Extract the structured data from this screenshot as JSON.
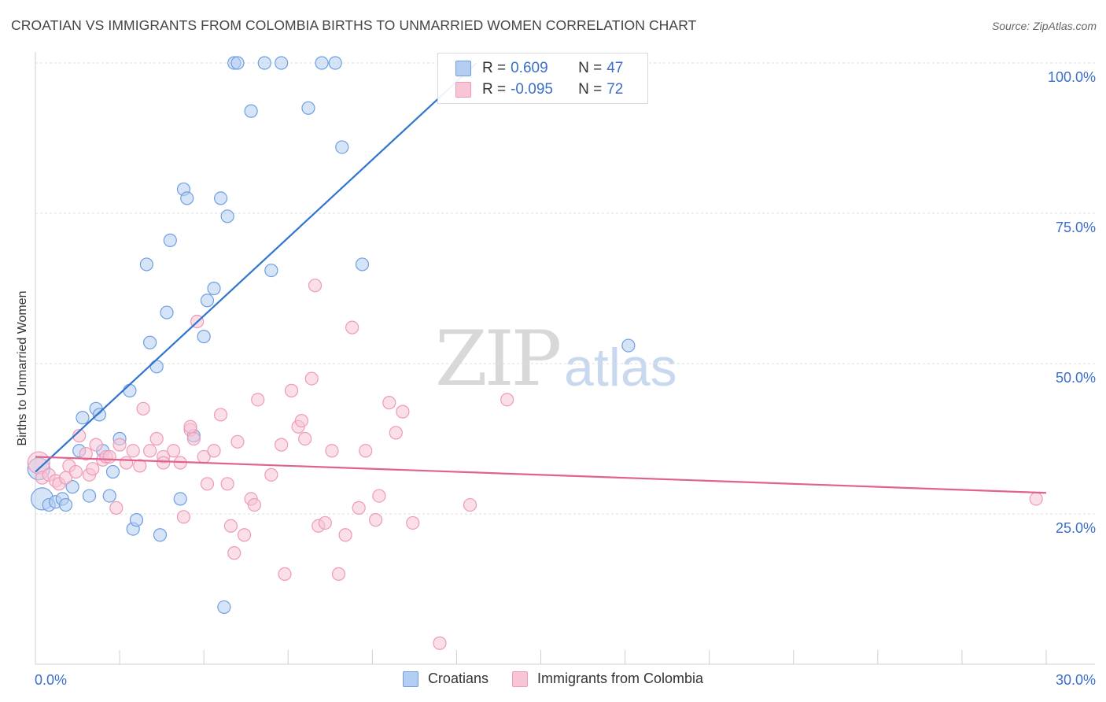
{
  "header": {
    "title": "CROATIAN VS IMMIGRANTS FROM COLOMBIA BIRTHS TO UNMARRIED WOMEN CORRELATION CHART",
    "source": "Source: ZipAtlas.com"
  },
  "watermark": {
    "zip": "ZIP",
    "atlas": "atlas"
  },
  "legend": {
    "rows": [
      {
        "r_label": "R =",
        "r_value": "0.609",
        "n_label": "N =",
        "n_value": "47"
      },
      {
        "r_label": "R =",
        "r_value": "-0.095",
        "n_label": "N =",
        "n_value": "72"
      }
    ]
  },
  "chart_data": {
    "type": "scatter",
    "title": "CROATIAN VS IMMIGRANTS FROM COLOMBIA BIRTHS TO UNMARRIED WOMEN CORRELATION CHART",
    "xlabel": "",
    "ylabel": "Births to Unmarried Women",
    "xlim": [
      0,
      30
    ],
    "ylim": [
      0,
      100
    ],
    "x_ticks": [
      "0.0%",
      "30.0%"
    ],
    "y_ticks": [
      {
        "value": 25,
        "label": "25.0%"
      },
      {
        "value": 50,
        "label": "50.0%"
      },
      {
        "value": 75,
        "label": "75.0%"
      },
      {
        "value": 100,
        "label": "100.0%"
      }
    ],
    "grid": true,
    "legend_position": "top-center",
    "series": [
      {
        "name": "Croatians",
        "color": "#6f9fe0",
        "fill": "#b4cdf2",
        "line_color": "#2f74d0",
        "trend": {
          "x": [
            0.0,
            13.1
          ],
          "y": [
            32.0,
            100.0
          ]
        },
        "points": [
          {
            "x": 0.1,
            "y": 32.5,
            "big": true
          },
          {
            "x": 0.2,
            "y": 27.5,
            "big": true
          },
          {
            "x": 0.4,
            "y": 26.5
          },
          {
            "x": 0.6,
            "y": 27.0
          },
          {
            "x": 0.8,
            "y": 27.5
          },
          {
            "x": 0.9,
            "y": 26.5
          },
          {
            "x": 1.1,
            "y": 29.5
          },
          {
            "x": 1.3,
            "y": 35.5
          },
          {
            "x": 1.4,
            "y": 41.0
          },
          {
            "x": 1.6,
            "y": 28.0
          },
          {
            "x": 1.8,
            "y": 42.5
          },
          {
            "x": 1.9,
            "y": 41.5
          },
          {
            "x": 2.0,
            "y": 35.5
          },
          {
            "x": 2.2,
            "y": 28.0
          },
          {
            "x": 2.3,
            "y": 32.0
          },
          {
            "x": 2.5,
            "y": 37.5
          },
          {
            "x": 2.8,
            "y": 45.5
          },
          {
            "x": 2.9,
            "y": 22.5
          },
          {
            "x": 3.0,
            "y": 24.0
          },
          {
            "x": 3.3,
            "y": 66.5
          },
          {
            "x": 3.4,
            "y": 53.5
          },
          {
            "x": 3.6,
            "y": 49.5
          },
          {
            "x": 3.7,
            "y": 21.5
          },
          {
            "x": 3.9,
            "y": 58.5
          },
          {
            "x": 4.0,
            "y": 70.5
          },
          {
            "x": 4.3,
            "y": 27.5
          },
          {
            "x": 4.4,
            "y": 79.0
          },
          {
            "x": 4.5,
            "y": 77.5
          },
          {
            "x": 4.7,
            "y": 38.0
          },
          {
            "x": 5.0,
            "y": 54.5
          },
          {
            "x": 5.1,
            "y": 60.5
          },
          {
            "x": 5.3,
            "y": 62.5
          },
          {
            "x": 5.5,
            "y": 77.5
          },
          {
            "x": 5.7,
            "y": 74.5
          },
          {
            "x": 5.6,
            "y": 9.5
          },
          {
            "x": 5.9,
            "y": 100.0
          },
          {
            "x": 6.0,
            "y": 100.0
          },
          {
            "x": 6.4,
            "y": 92.0
          },
          {
            "x": 6.8,
            "y": 100.0
          },
          {
            "x": 7.0,
            "y": 65.5
          },
          {
            "x": 7.3,
            "y": 100.0
          },
          {
            "x": 8.1,
            "y": 92.5
          },
          {
            "x": 8.5,
            "y": 100.0
          },
          {
            "x": 8.9,
            "y": 100.0
          },
          {
            "x": 9.1,
            "y": 86.0
          },
          {
            "x": 9.7,
            "y": 66.5
          },
          {
            "x": 17.6,
            "y": 53.0
          }
        ]
      },
      {
        "name": "Immigrants from Colombia",
        "color": "#ee9ab5",
        "fill": "#f7c5d5",
        "line_color": "#e0638e",
        "trend": {
          "x": [
            0.0,
            30.0
          ],
          "y": [
            34.5,
            28.5
          ]
        },
        "points": [
          {
            "x": 0.1,
            "y": 33.5,
            "big": true
          },
          {
            "x": 0.2,
            "y": 31.0
          },
          {
            "x": 0.4,
            "y": 31.5
          },
          {
            "x": 0.6,
            "y": 30.5
          },
          {
            "x": 0.7,
            "y": 30.0
          },
          {
            "x": 0.9,
            "y": 31.0
          },
          {
            "x": 1.0,
            "y": 33.0
          },
          {
            "x": 1.2,
            "y": 32.0
          },
          {
            "x": 1.3,
            "y": 38.0
          },
          {
            "x": 1.5,
            "y": 35.0
          },
          {
            "x": 1.6,
            "y": 31.5
          },
          {
            "x": 1.7,
            "y": 32.5
          },
          {
            "x": 1.8,
            "y": 36.5
          },
          {
            "x": 2.0,
            "y": 34.0
          },
          {
            "x": 2.1,
            "y": 34.5
          },
          {
            "x": 2.2,
            "y": 34.5
          },
          {
            "x": 2.4,
            "y": 26.0
          },
          {
            "x": 2.5,
            "y": 36.5
          },
          {
            "x": 2.7,
            "y": 33.5
          },
          {
            "x": 2.9,
            "y": 35.5
          },
          {
            "x": 3.1,
            "y": 33.0
          },
          {
            "x": 3.2,
            "y": 42.5
          },
          {
            "x": 3.4,
            "y": 35.5
          },
          {
            "x": 3.6,
            "y": 37.5
          },
          {
            "x": 3.8,
            "y": 34.5
          },
          {
            "x": 3.8,
            "y": 33.5
          },
          {
            "x": 4.1,
            "y": 35.5
          },
          {
            "x": 4.3,
            "y": 33.5
          },
          {
            "x": 4.4,
            "y": 24.5
          },
          {
            "x": 4.6,
            "y": 39.0
          },
          {
            "x": 4.7,
            "y": 37.5
          },
          {
            "x": 4.8,
            "y": 57.0
          },
          {
            "x": 5.0,
            "y": 34.5
          },
          {
            "x": 5.1,
            "y": 30.0
          },
          {
            "x": 5.3,
            "y": 35.5
          },
          {
            "x": 5.5,
            "y": 41.5
          },
          {
            "x": 5.7,
            "y": 30.0
          },
          {
            "x": 5.8,
            "y": 23.0
          },
          {
            "x": 5.9,
            "y": 18.5
          },
          {
            "x": 6.0,
            "y": 37.0
          },
          {
            "x": 6.2,
            "y": 21.5
          },
          {
            "x": 6.4,
            "y": 27.5
          },
          {
            "x": 6.5,
            "y": 26.5
          },
          {
            "x": 6.6,
            "y": 44.0
          },
          {
            "x": 7.0,
            "y": 31.5
          },
          {
            "x": 7.3,
            "y": 36.5
          },
          {
            "x": 7.4,
            "y": 15.0
          },
          {
            "x": 7.6,
            "y": 45.5
          },
          {
            "x": 7.8,
            "y": 39.5
          },
          {
            "x": 7.9,
            "y": 40.5
          },
          {
            "x": 8.0,
            "y": 37.5
          },
          {
            "x": 8.2,
            "y": 47.5
          },
          {
            "x": 8.3,
            "y": 63.0
          },
          {
            "x": 8.4,
            "y": 23.0
          },
          {
            "x": 8.6,
            "y": 23.5
          },
          {
            "x": 8.8,
            "y": 35.5
          },
          {
            "x": 9.0,
            "y": 15.0
          },
          {
            "x": 9.2,
            "y": 21.5
          },
          {
            "x": 9.4,
            "y": 56.0
          },
          {
            "x": 9.6,
            "y": 26.0
          },
          {
            "x": 9.8,
            "y": 35.5
          },
          {
            "x": 10.1,
            "y": 24.0
          },
          {
            "x": 10.2,
            "y": 28.0
          },
          {
            "x": 10.5,
            "y": 43.5
          },
          {
            "x": 10.7,
            "y": 38.5
          },
          {
            "x": 10.9,
            "y": 42.0
          },
          {
            "x": 11.2,
            "y": 23.5
          },
          {
            "x": 12.0,
            "y": 3.5
          },
          {
            "x": 12.9,
            "y": 26.5
          },
          {
            "x": 14.0,
            "y": 44.0
          },
          {
            "x": 29.7,
            "y": 27.5
          },
          {
            "x": 4.6,
            "y": 39.5
          }
        ]
      }
    ]
  },
  "bottom_legend": [
    {
      "label": "Croatians"
    },
    {
      "label": "Immigrants from Colombia"
    }
  ],
  "colors": {
    "blue_fill": "#b4cdf2",
    "blue_stroke": "#6f9fe0",
    "pink_fill": "#f7c5d5",
    "pink_stroke": "#ee9ab5",
    "tick_text": "#3b6fc9"
  }
}
